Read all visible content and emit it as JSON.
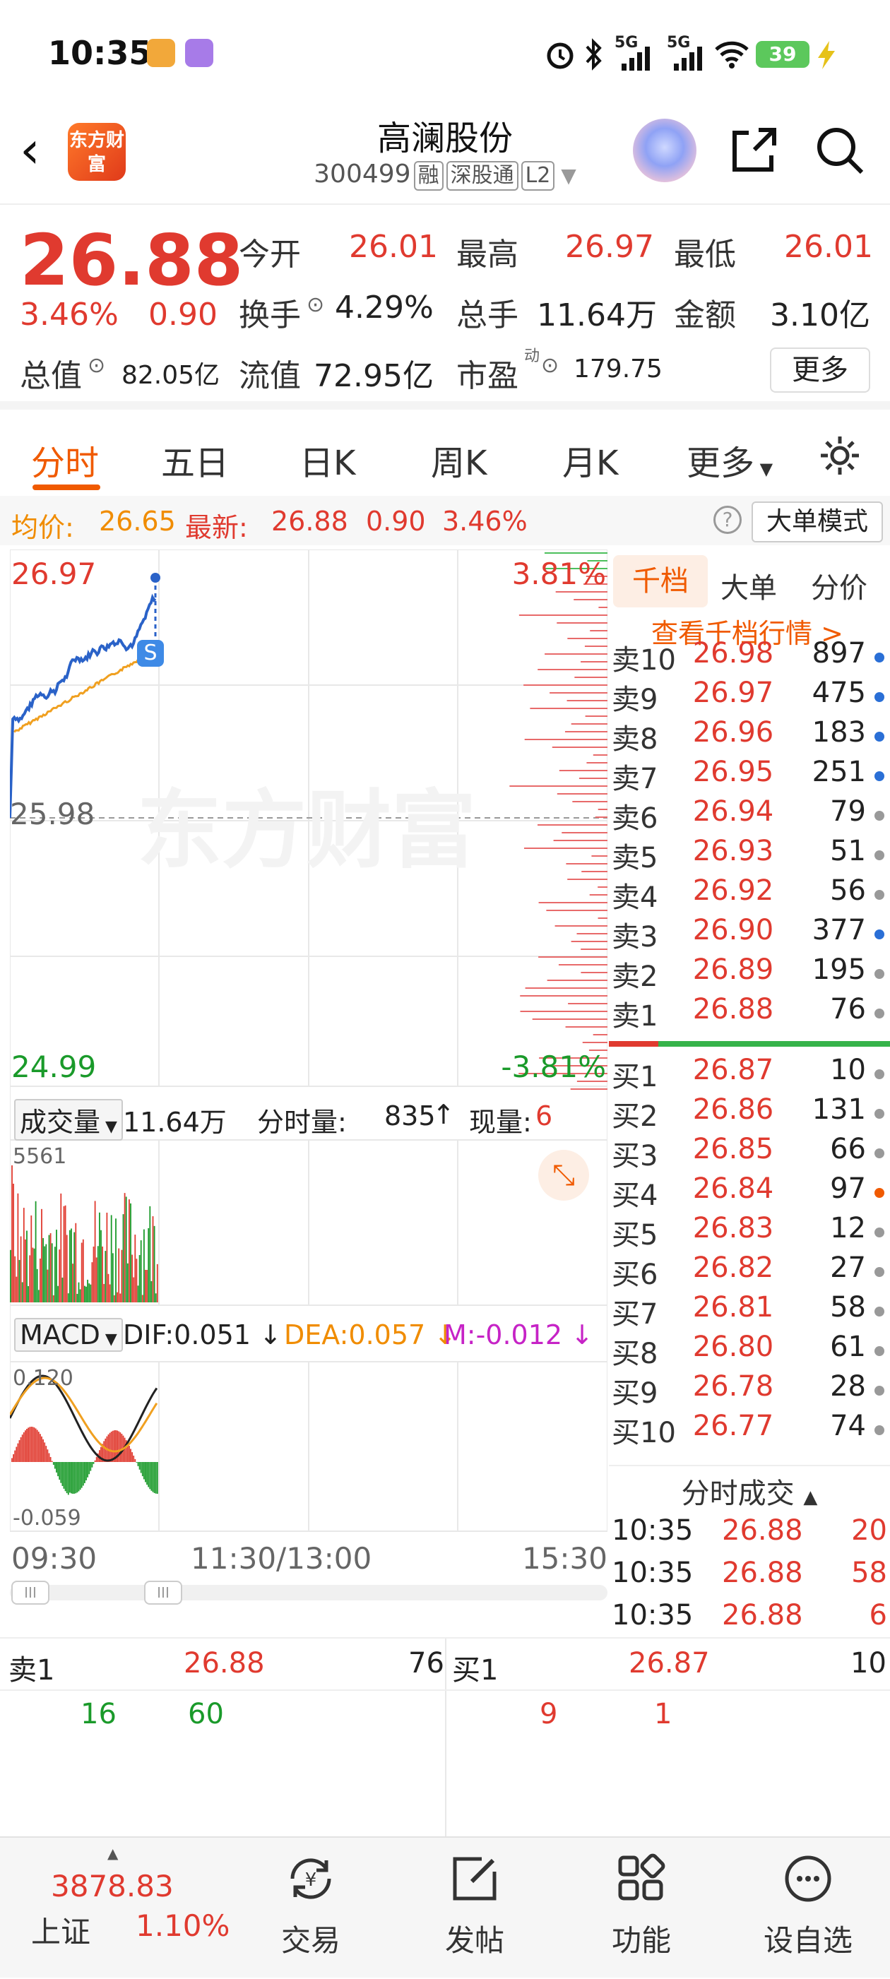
{
  "status": {
    "time": "10:35",
    "battery": "39",
    "net1": "5G",
    "net2": "5G"
  },
  "header": {
    "logo": "东方财富",
    "name": "高澜股份",
    "code": "300499",
    "tags": [
      "融",
      "深股通",
      "L2"
    ]
  },
  "quote": {
    "price": "26.88",
    "pct": "3.46%",
    "chg": "0.90",
    "open_l": "今开",
    "open": "26.01",
    "high_l": "最高",
    "high": "26.97",
    "low_l": "最低",
    "low": "26.01",
    "turn_l": "换手",
    "turn": "4.29%",
    "vol_l": "总手",
    "vol": "11.64万",
    "amt_l": "金额",
    "amt": "3.10亿",
    "mcap_l": "总值",
    "mcap": "82.05亿",
    "float_l": "流值",
    "float": "72.95亿",
    "pe_l": "市盈",
    "pe_sup": "动",
    "pe": "179.75",
    "more": "更多"
  },
  "tabs": [
    "分时",
    "五日",
    "日K",
    "周K",
    "月K",
    "更多"
  ],
  "avg": {
    "avg_l": "均价:",
    "avg": "26.65",
    "last_l": "最新:",
    "last": "26.88",
    "chg": "0.90",
    "pct": "3.46%",
    "mode": "大单模式"
  },
  "chart": {
    "top_price": "26.97",
    "top_pct": "3.81%",
    "mid_price": "25.98",
    "bot_price": "24.99",
    "bot_pct": "-3.81%",
    "watermark": "东方财富",
    "vol_l": "成交量",
    "vol": "11.64万",
    "fs_l": "分时量:",
    "fs": "835",
    "now_l": "现量:",
    "now": "6",
    "vol_max": "5561",
    "macd_l": "MACD",
    "dif": "DIF:0.051",
    "dea": "DEA:0.057",
    "m": "M:-0.012",
    "macd_top": "0.120",
    "macd_bot": "-0.059",
    "t_start": "09:30",
    "t_mid": "11:30/13:00",
    "t_end": "15:30",
    "s_marker": "S"
  },
  "book": {
    "tabs": [
      "千档",
      "大单",
      "分价"
    ],
    "link": "查看千档行情 >",
    "sell": [
      {
        "l": "卖10",
        "p": "26.98",
        "v": "897",
        "c": "#2a6fd6"
      },
      {
        "l": "卖9",
        "p": "26.97",
        "v": "475",
        "c": "#2a6fd6"
      },
      {
        "l": "卖8",
        "p": "26.96",
        "v": "183",
        "c": "#2a6fd6"
      },
      {
        "l": "卖7",
        "p": "26.95",
        "v": "251",
        "c": "#2a6fd6"
      },
      {
        "l": "卖6",
        "p": "26.94",
        "v": "79",
        "c": "#999999"
      },
      {
        "l": "卖5",
        "p": "26.93",
        "v": "51",
        "c": "#999999"
      },
      {
        "l": "卖4",
        "p": "26.92",
        "v": "56",
        "c": "#999999"
      },
      {
        "l": "卖3",
        "p": "26.90",
        "v": "377",
        "c": "#2a6fd6"
      },
      {
        "l": "卖2",
        "p": "26.89",
        "v": "195",
        "c": "#999999"
      },
      {
        "l": "卖1",
        "p": "26.88",
        "v": "76",
        "c": "#999999"
      }
    ],
    "buy": [
      {
        "l": "买1",
        "p": "26.87",
        "v": "10",
        "c": "#999999"
      },
      {
        "l": "买2",
        "p": "26.86",
        "v": "131",
        "c": "#999999"
      },
      {
        "l": "买3",
        "p": "26.85",
        "v": "66",
        "c": "#999999"
      },
      {
        "l": "买4",
        "p": "26.84",
        "v": "97",
        "c": "#f05a00"
      },
      {
        "l": "买5",
        "p": "26.83",
        "v": "12",
        "c": "#999999"
      },
      {
        "l": "买6",
        "p": "26.82",
        "v": "27",
        "c": "#999999"
      },
      {
        "l": "买7",
        "p": "26.81",
        "v": "58",
        "c": "#999999"
      },
      {
        "l": "买8",
        "p": "26.80",
        "v": "61",
        "c": "#999999"
      },
      {
        "l": "买9",
        "p": "26.78",
        "v": "28",
        "c": "#999999"
      },
      {
        "l": "买10",
        "p": "26.77",
        "v": "74",
        "c": "#999999"
      }
    ],
    "trades_l": "分时成交",
    "trades": [
      {
        "t": "10:35",
        "p": "26.88",
        "v": "20"
      },
      {
        "t": "10:35",
        "p": "26.88",
        "v": "58"
      },
      {
        "t": "10:35",
        "p": "26.88",
        "v": "6"
      }
    ]
  },
  "level": {
    "s1_l": "卖1",
    "s1_p": "26.88",
    "s1_v": "76",
    "b1_l": "买1",
    "b1_p": "26.87",
    "b1_v": "10",
    "s_a": "16",
    "s_b": "60",
    "b_a": "9",
    "b_b": "1"
  },
  "nav": {
    "index": "3878.83",
    "index_name": "上证",
    "index_pct": "1.10%",
    "items": [
      "交易",
      "发帖",
      "功能",
      "设自选"
    ]
  }
}
